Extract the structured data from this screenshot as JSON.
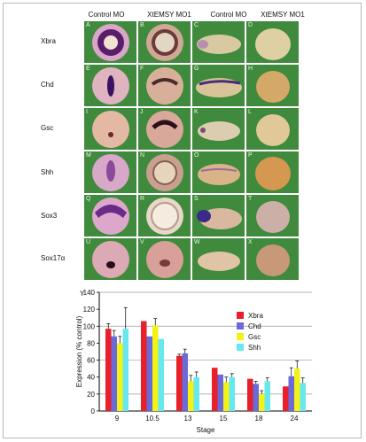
{
  "columns": [
    "Control MO",
    "XtEMSY MO1",
    "Control MO",
    "XtEMSY MO1"
  ],
  "rows": [
    {
      "label": "Xbra",
      "letters": [
        "A",
        "B",
        "C",
        "D"
      ]
    },
    {
      "label": "Chd",
      "letters": [
        "E",
        "F",
        "G",
        "H"
      ]
    },
    {
      "label": "Gsc",
      "letters": [
        "I",
        "J",
        "K",
        "L"
      ]
    },
    {
      "label": "Shh",
      "letters": [
        "M",
        "N",
        "O",
        "P"
      ]
    },
    {
      "label": "Sox3",
      "letters": [
        "Q",
        "R",
        "S",
        "T"
      ]
    },
    {
      "label": "Sox17α",
      "letters": [
        "U",
        "V",
        "W",
        "X"
      ]
    }
  ],
  "chart_data": {
    "type": "bar",
    "panel_label": "Y",
    "categories": [
      "9",
      "10.5",
      "13",
      "15",
      "18",
      "24"
    ],
    "xlabel": "Stage",
    "ylabel": "Expression (% control)",
    "ylim": [
      0,
      140
    ],
    "yticks": [
      0,
      20,
      40,
      60,
      80,
      100,
      120,
      140
    ],
    "legend_position": "right",
    "series": [
      {
        "name": "Xbra",
        "color": "#e8202a",
        "values": [
          97,
          106,
          65,
          51,
          38,
          29
        ],
        "errors": [
          6,
          0,
          2,
          0,
          0,
          0
        ]
      },
      {
        "name": "Chd",
        "color": "#6a6ad8",
        "values": [
          88,
          88,
          68,
          43,
          32,
          41
        ],
        "errors": [
          7,
          0,
          5,
          0,
          3,
          10
        ]
      },
      {
        "name": "Gsc",
        "color": "#f2f216",
        "values": [
          80,
          101,
          35,
          34,
          20,
          50
        ],
        "errors": [
          8,
          8,
          7,
          6,
          4,
          9
        ]
      },
      {
        "name": "Shh",
        "color": "#66e8ee",
        "values": [
          97,
          85,
          40,
          40,
          35,
          33
        ],
        "errors": [
          25,
          0,
          6,
          4,
          4,
          6
        ]
      }
    ]
  }
}
